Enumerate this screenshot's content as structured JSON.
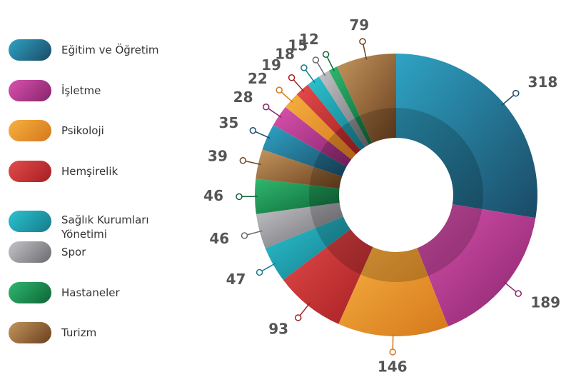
{
  "chart_data": {
    "type": "donut",
    "legend": [
      {
        "name": "Eğitim ve Öğretim",
        "color": [
          "#2fa3c4",
          "#1a4a66"
        ]
      },
      {
        "name": "İşletme",
        "color": [
          "#da52ad",
          "#86246c"
        ]
      },
      {
        "name": "Psikoloji",
        "color": [
          "#f6b040",
          "#d5781c"
        ]
      },
      {
        "name": "Hemşirelik",
        "color": [
          "#e44b4b",
          "#a51f22"
        ]
      },
      {
        "name": "Sağlık Kurumları Yönetimi",
        "color": [
          "#2cc2d0",
          "#157b8a"
        ]
      },
      {
        "name": "Spor",
        "color": [
          "#c4c4c8",
          "#6a6a70"
        ]
      },
      {
        "name": "Hastaneler",
        "color": [
          "#2fb86e",
          "#0e6536"
        ]
      },
      {
        "name": "Turizm",
        "color": [
          "#c4955e",
          "#6a401d"
        ]
      }
    ],
    "values": [
      318,
      189,
      146,
      93,
      47,
      46,
      46,
      39,
      35,
      28,
      22,
      19,
      18,
      15,
      12,
      79
    ]
  }
}
